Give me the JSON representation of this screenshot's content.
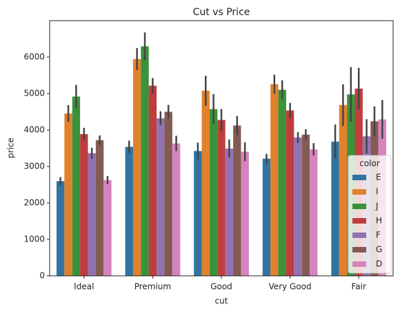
{
  "chart_data": {
    "type": "bar",
    "title": "Cut vs Price",
    "x_label": "cut",
    "y_label": "price",
    "categories": [
      "Ideal",
      "Premium",
      "Good",
      "Very Good",
      "Fair"
    ],
    "ylim": [
      0,
      7000
    ],
    "yticks": [
      0,
      1000,
      2000,
      3000,
      4000,
      5000,
      6000
    ],
    "legend_title": "color",
    "legend_position": "lower right",
    "series": [
      {
        "name": "E",
        "color": "#3274a1",
        "values": [
          2598,
          3539,
          3423,
          3215,
          3682
        ],
        "errors": [
          110,
          170,
          230,
          130,
          470
        ]
      },
      {
        "name": "I",
        "color": "#e1812c",
        "values": [
          4453,
          5946,
          5078,
          5256,
          4685
        ],
        "errors": [
          230,
          300,
          410,
          260,
          570
        ]
      },
      {
        "name": "J",
        "color": "#3a923a",
        "values": [
          4918,
          6295,
          4574,
          5103,
          4976
        ],
        "errors": [
          320,
          380,
          410,
          260,
          750
        ]
      },
      {
        "name": "H",
        "color": "#c03d3e",
        "values": [
          3889,
          5216,
          4276,
          4535,
          5136
        ],
        "errors": [
          170,
          210,
          300,
          210,
          570
        ]
      },
      {
        "name": "F",
        "color": "#9372b2",
        "values": [
          3364,
          4324,
          3491,
          3796,
          3827
        ],
        "errors": [
          150,
          190,
          250,
          150,
          470
        ]
      },
      {
        "name": "G",
        "color": "#845b53",
        "values": [
          3721,
          4500,
          4123,
          3873,
          4239
        ],
        "errors": [
          130,
          190,
          260,
          150,
          410
        ]
      },
      {
        "name": "D",
        "color": "#d684bd",
        "values": [
          2629,
          3631,
          3405,
          3470,
          4291
        ],
        "errors": [
          110,
          210,
          260,
          170,
          530
        ]
      }
    ]
  }
}
